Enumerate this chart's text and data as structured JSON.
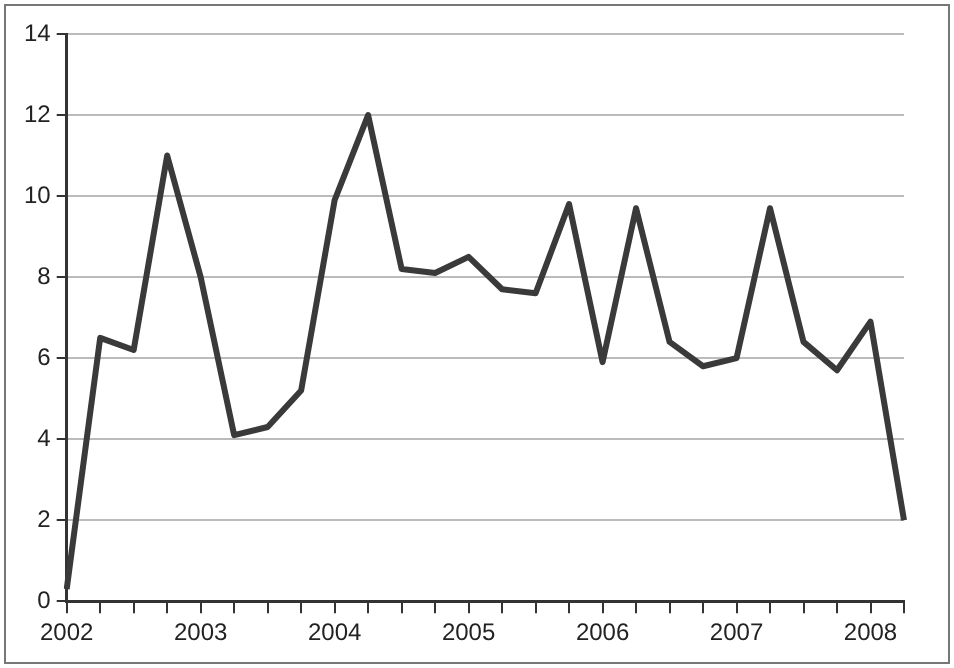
{
  "chart_data": {
    "type": "line",
    "categories": [
      "2002",
      null,
      null,
      null,
      "2003",
      null,
      null,
      null,
      "2004",
      null,
      null,
      null,
      "2005",
      null,
      null,
      null,
      "2006",
      null,
      null,
      null,
      "2007",
      null,
      null,
      null,
      "2008",
      null
    ],
    "series": [
      {
        "color": "#3a3a3a",
        "values": [
          0.3,
          6.5,
          6.2,
          11.0,
          8.0,
          4.1,
          4.3,
          5.2,
          9.9,
          12.0,
          8.2,
          8.1,
          8.5,
          7.7,
          7.6,
          9.8,
          5.9,
          9.7,
          6.4,
          5.8,
          6.0,
          9.7,
          6.4,
          5.7,
          6.9,
          2.0
        ]
      }
    ],
    "ylim": [
      0,
      14
    ],
    "yticks": [
      0,
      2,
      4,
      6,
      8,
      10,
      12,
      14
    ],
    "grid": "y",
    "legend": false,
    "marker": "none",
    "line_style": "solid"
  }
}
